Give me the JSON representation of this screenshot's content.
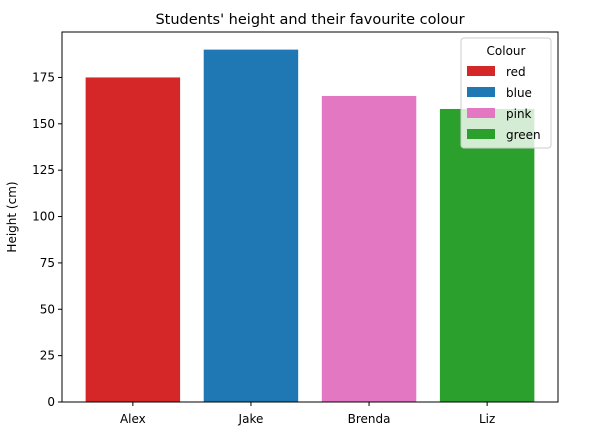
{
  "chart_data": {
    "type": "bar",
    "title": "Students' height and their favourite colour",
    "xlabel": "",
    "ylabel": "Height (cm)",
    "categories": [
      "Alex",
      "Jake",
      "Brenda",
      "Liz"
    ],
    "values": [
      175,
      190,
      165,
      158
    ],
    "bar_colors": [
      "#d62728",
      "#1f77b4",
      "#e377c2",
      "#2ca02c"
    ],
    "ylim": [
      0,
      199.5
    ],
    "yticks": [
      0,
      25,
      50,
      75,
      100,
      125,
      150,
      175
    ],
    "grid": false,
    "legend": {
      "title": "Colour",
      "placement": "top-right",
      "entries": [
        {
          "label": "red",
          "color": "#d62728"
        },
        {
          "label": "blue",
          "color": "#1f77b4"
        },
        {
          "label": "pink",
          "color": "#e377c2"
        },
        {
          "label": "green",
          "color": "#2ca02c"
        }
      ]
    }
  }
}
